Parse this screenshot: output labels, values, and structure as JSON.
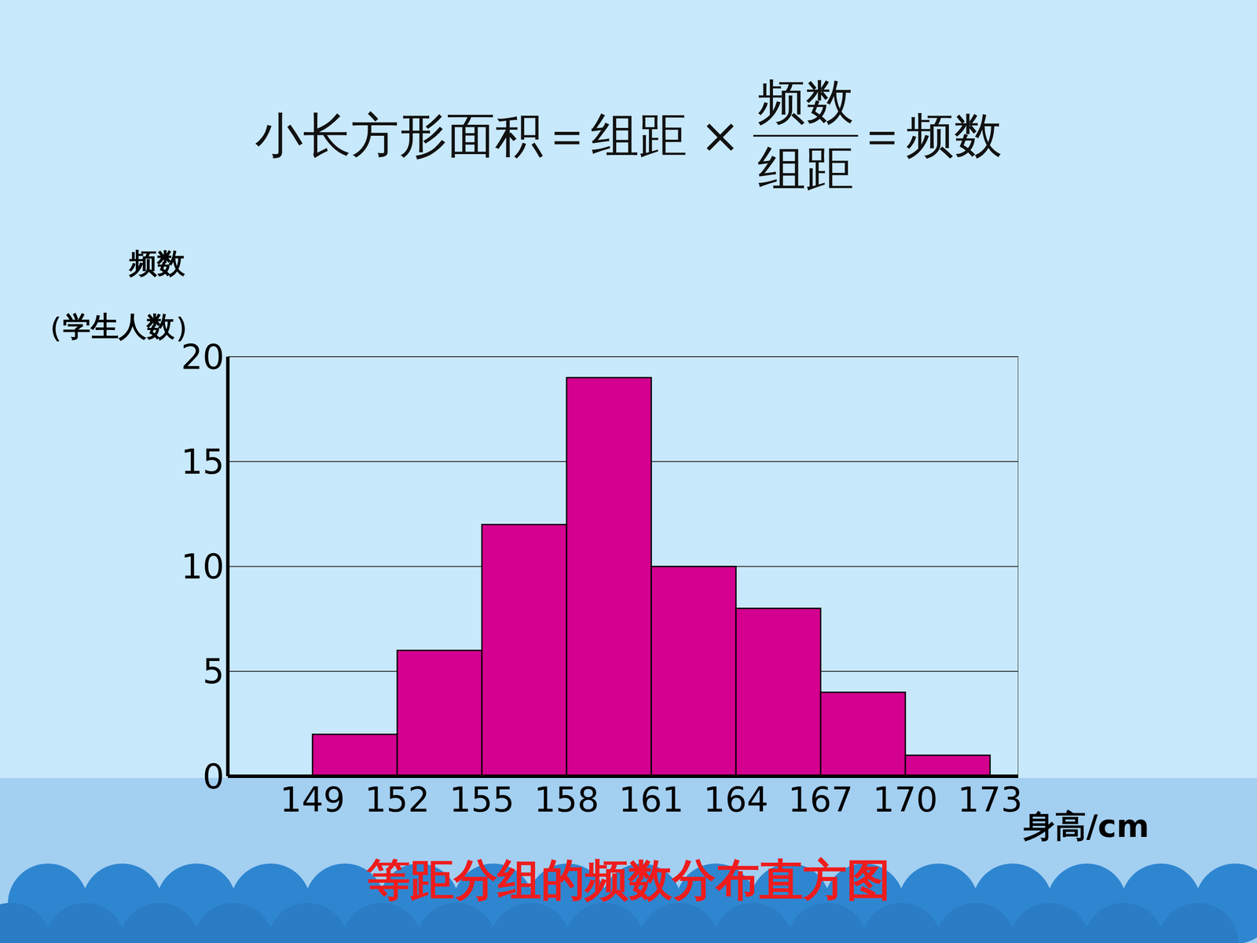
{
  "chart_data": {
    "type": "histogram",
    "title": "等距分组的频数分布直方图",
    "formula": {
      "left": "小长方形面积＝组距",
      "times": "×",
      "numerator": "频数",
      "denominator": "组距",
      "right": "＝频数"
    },
    "y_label": "频数",
    "y_label_note": "（学生人数）",
    "x_label": "身高/cm",
    "bins": [
      149,
      152,
      155,
      158,
      161,
      164,
      167,
      170,
      173
    ],
    "values": [
      2,
      6,
      12,
      19,
      10,
      8,
      4,
      1
    ],
    "color": "#d4008f",
    "xlim": [
      146,
      174
    ],
    "xticks": [
      149,
      152,
      155,
      158,
      161,
      164,
      167,
      170,
      173
    ],
    "ylim": [
      0,
      20
    ],
    "yticks": [
      0,
      5,
      10,
      15,
      20
    ],
    "grid": true
  }
}
